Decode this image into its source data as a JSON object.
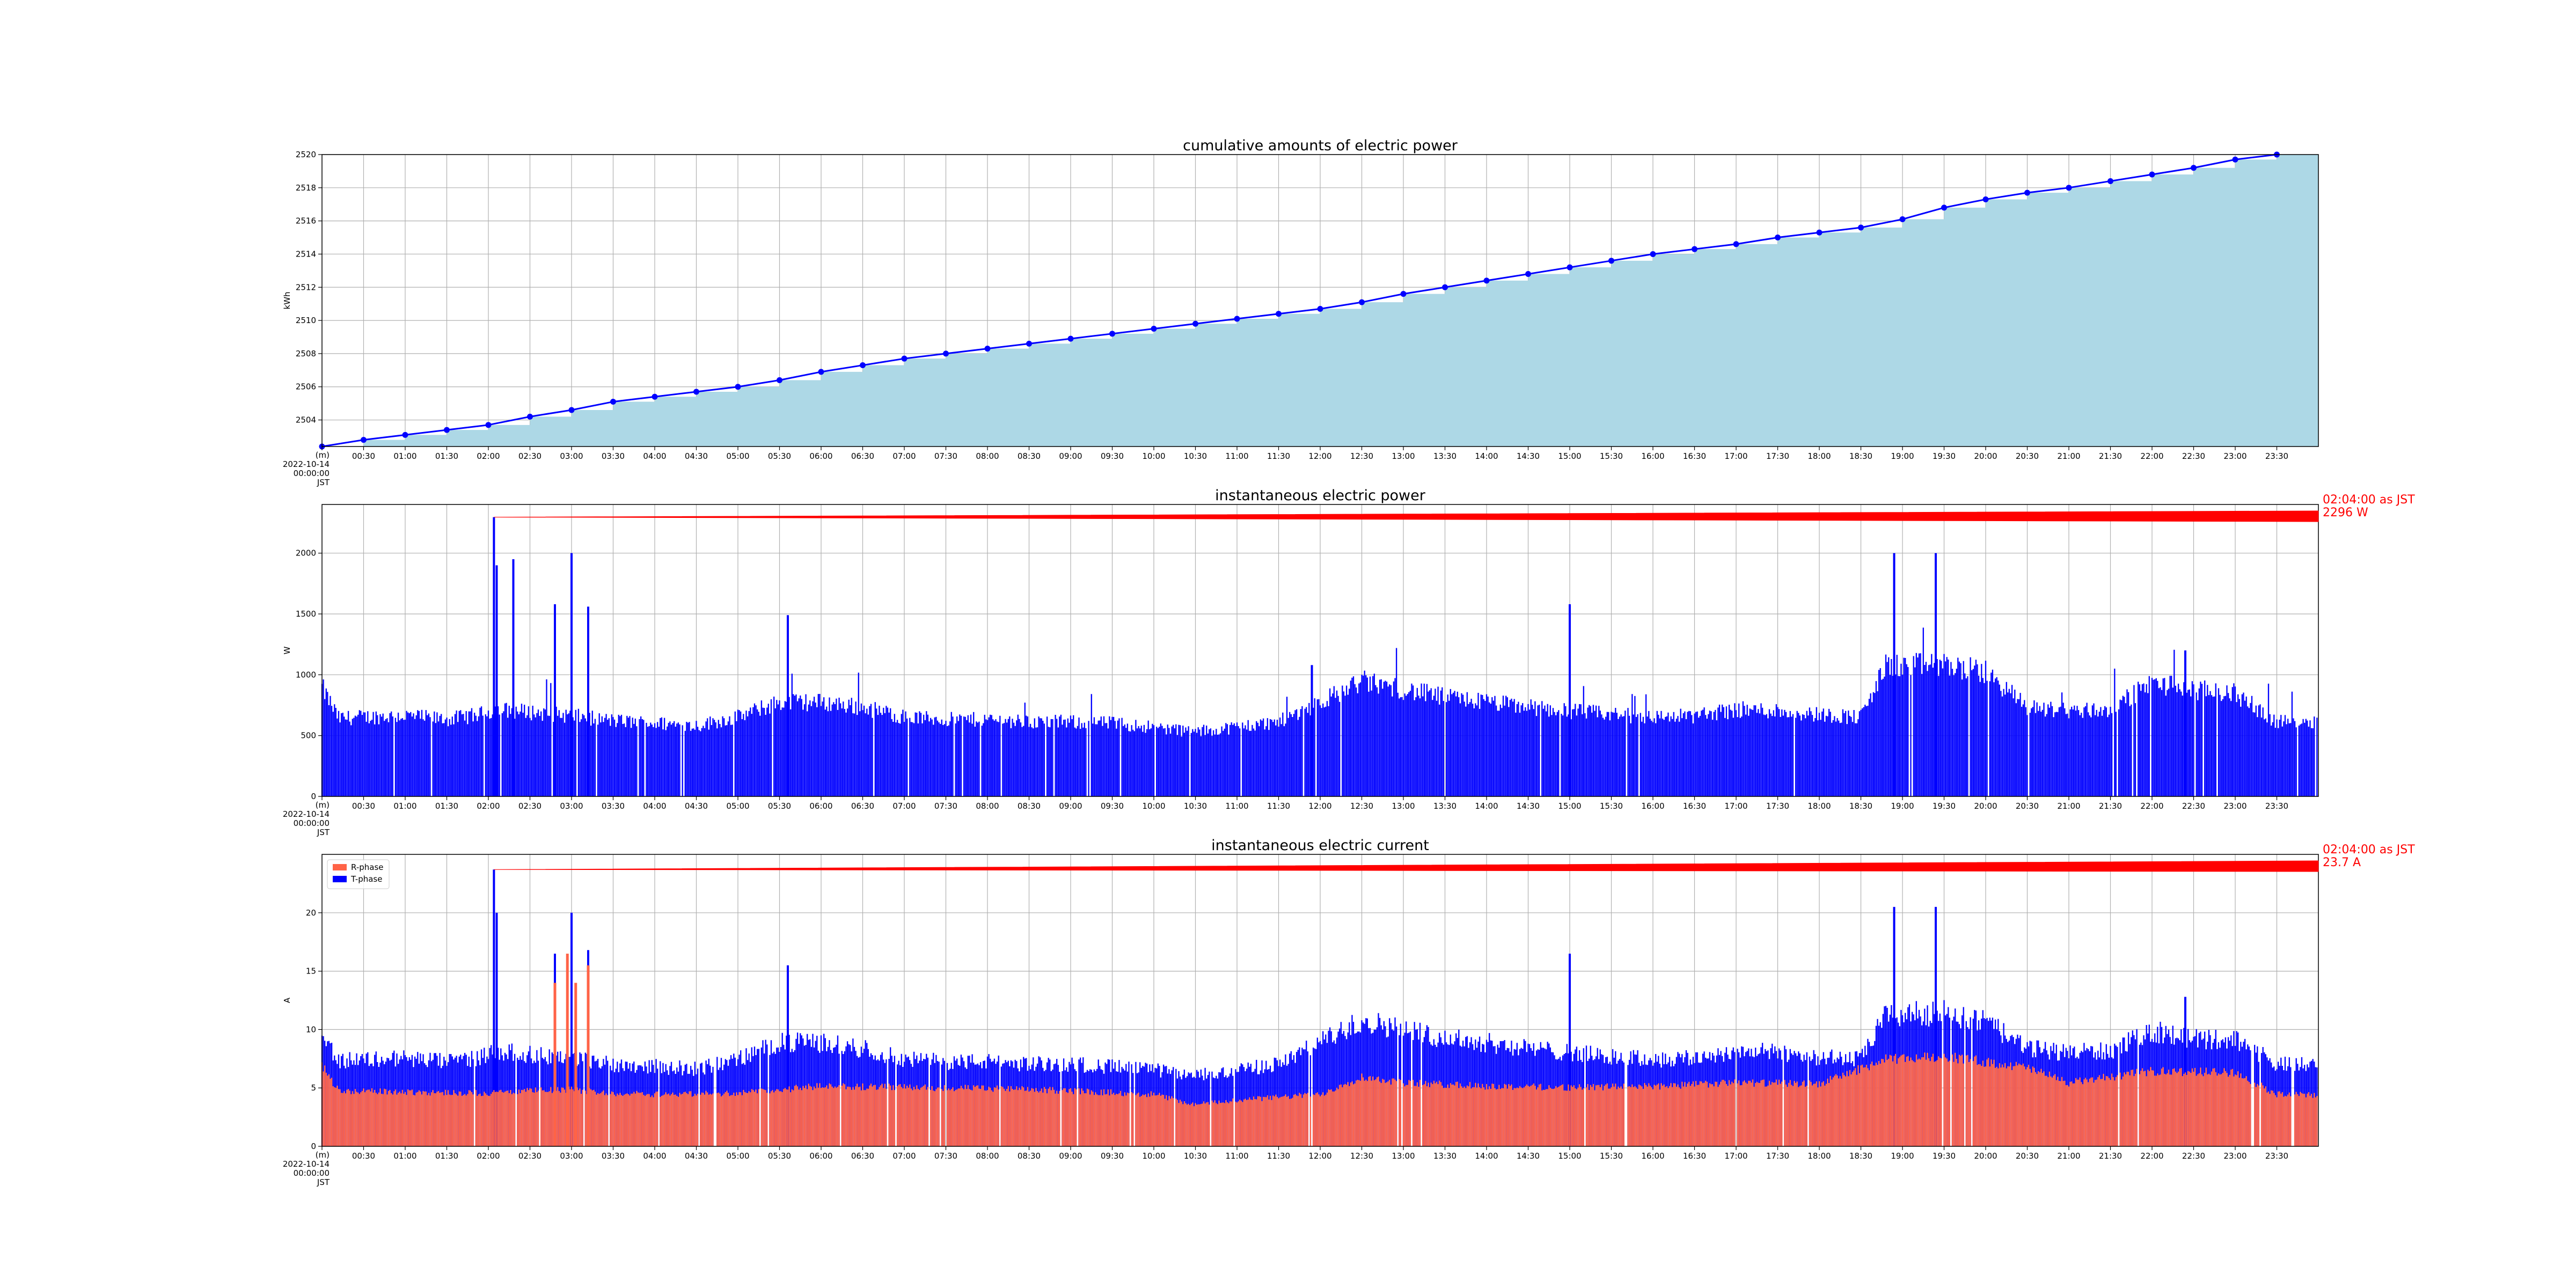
{
  "chart_data": [
    {
      "type": "area",
      "title": "cumulative amounts of electric power",
      "ylabel": "kWh",
      "ylim": [
        2502.4,
        2520
      ],
      "yticks": [
        2504,
        2506,
        2508,
        2510,
        2512,
        2514,
        2516,
        2518,
        2520
      ],
      "xlim": [
        0,
        24
      ],
      "first_tick_label": [
        "(m)",
        "2022-10-14",
        "00:00:00",
        "JST"
      ],
      "xtick_labels": [
        "00:30",
        "01:00",
        "01:30",
        "02:00",
        "02:30",
        "03:00",
        "03:30",
        "04:00",
        "04:30",
        "05:00",
        "05:30",
        "06:00",
        "06:30",
        "07:00",
        "07:30",
        "08:00",
        "08:30",
        "09:00",
        "09:30",
        "10:00",
        "10:30",
        "11:00",
        "11:30",
        "12:00",
        "12:30",
        "13:00",
        "13:30",
        "14:00",
        "14:30",
        "15:00",
        "15:30",
        "16:00",
        "16:30",
        "17:00",
        "17:30",
        "18:00",
        "18:30",
        "19:00",
        "19:30",
        "20:00",
        "20:30",
        "21:00",
        "21:30",
        "22:00",
        "22:30",
        "23:00",
        "23:30"
      ],
      "grid": true,
      "fill_color": "#add8e6",
      "line_color": "#0000ff",
      "x_hours": [
        0,
        0.5,
        1,
        1.5,
        2,
        2.5,
        3,
        3.5,
        4,
        4.5,
        5,
        5.5,
        6,
        6.5,
        7,
        7.5,
        8,
        8.5,
        9,
        9.5,
        10,
        10.5,
        11,
        11.5,
        12,
        12.5,
        13,
        13.5,
        14,
        14.5,
        15,
        15.5,
        16,
        16.5,
        17,
        17.5,
        18,
        18.5,
        19,
        19.5,
        20,
        20.5,
        21,
        21.5,
        22,
        22.5,
        23,
        23.5
      ],
      "values": [
        2502.4,
        2502.8,
        2503.1,
        2503.4,
        2503.7,
        2504.2,
        2504.6,
        2505.1,
        2505.4,
        2505.7,
        2506.0,
        2506.4,
        2506.9,
        2507.3,
        2507.7,
        2508.0,
        2508.3,
        2508.6,
        2508.9,
        2509.2,
        2509.5,
        2509.8,
        2510.1,
        2510.4,
        2510.7,
        2511.1,
        2511.6,
        2512.0,
        2512.4,
        2512.8,
        2513.2,
        2513.6,
        2514.0,
        2514.3,
        2514.6,
        2515.0,
        2515.3,
        2515.6,
        2516.1,
        2516.8,
        2517.3,
        2517.7,
        2518.0,
        2518.4,
        2518.8,
        2519.2,
        2519.7,
        2520.0
      ]
    },
    {
      "type": "bar",
      "title": "instantaneous electric power",
      "ylabel": "W",
      "ylim": [
        0,
        2400
      ],
      "yticks": [
        0,
        500,
        1000,
        1500,
        2000
      ],
      "xlim": [
        0,
        24
      ],
      "first_tick_label": [
        "(m)",
        "2022-10-14",
        "00:00:00",
        "JST"
      ],
      "xtick_labels": [
        "00:30",
        "01:00",
        "01:30",
        "02:00",
        "02:30",
        "03:00",
        "03:30",
        "04:00",
        "04:30",
        "05:00",
        "05:30",
        "06:00",
        "06:30",
        "07:00",
        "07:30",
        "08:00",
        "08:30",
        "09:00",
        "09:30",
        "10:00",
        "10:30",
        "11:00",
        "11:30",
        "12:00",
        "12:30",
        "13:00",
        "13:30",
        "14:00",
        "14:30",
        "15:00",
        "15:30",
        "16:00",
        "16:30",
        "17:00",
        "17:30",
        "18:00",
        "18:30",
        "19:00",
        "19:30",
        "20:00",
        "20:30",
        "21:00",
        "21:30",
        "22:00",
        "22:30",
        "23:00",
        "23:30"
      ],
      "grid": true,
      "bar_color": "#0000ff",
      "baseline_profile": {
        "hours": [
          0,
          0.2,
          0.5,
          1,
          1.5,
          1.9,
          2.1,
          2.5,
          3,
          3.5,
          4,
          4.5,
          5,
          5.5,
          6,
          6.5,
          7,
          7.5,
          8,
          8.5,
          9,
          9.5,
          10,
          10.5,
          11,
          11.5,
          12,
          12.5,
          13,
          13.5,
          14,
          14.5,
          15,
          15.5,
          16,
          16.5,
          17,
          17.5,
          18,
          18.5,
          18.8,
          19.5,
          20,
          20.5,
          21,
          21.5,
          22,
          22.5,
          23,
          23.5,
          24
        ],
        "watts": [
          880,
          630,
          640,
          650,
          620,
          660,
          700,
          680,
          650,
          610,
          590,
          570,
          640,
          760,
          760,
          720,
          640,
          620,
          620,
          600,
          600,
          590,
          560,
          520,
          560,
          600,
          760,
          930,
          860,
          800,
          760,
          720,
          690,
          660,
          640,
          650,
          700,
          690,
          660,
          640,
          1050,
          1060,
          1000,
          720,
          690,
          700,
          920,
          860,
          830,
          600,
          610
        ]
      },
      "peaks": [
        {
          "hour": 2.067,
          "value": 2296
        },
        {
          "hour": 2.1,
          "value": 1900
        },
        {
          "hour": 2.3,
          "value": 1950
        },
        {
          "hour": 2.8,
          "value": 1580
        },
        {
          "hour": 3.0,
          "value": 2000
        },
        {
          "hour": 3.2,
          "value": 1560
        },
        {
          "hour": 5.6,
          "value": 1490
        },
        {
          "hour": 11.9,
          "value": 1080
        },
        {
          "hour": 15.0,
          "value": 1580
        },
        {
          "hour": 18.9,
          "value": 2000
        },
        {
          "hour": 19.4,
          "value": 2000
        },
        {
          "hour": 22.4,
          "value": 1200
        }
      ],
      "annotation": {
        "lines": [
          "02:04:00 as JST",
          "2296 W"
        ],
        "hour": 2.067,
        "value": 2296
      }
    },
    {
      "type": "area",
      "title": "instantaneous electric current",
      "ylabel": "A",
      "ylim": [
        0,
        25
      ],
      "yticks": [
        0,
        5,
        10,
        15,
        20
      ],
      "xlim": [
        0,
        24
      ],
      "first_tick_label": [
        "(m)",
        "2022-10-14",
        "00:00:00",
        "JST"
      ],
      "xtick_labels": [
        "00:30",
        "01:00",
        "01:30",
        "02:00",
        "02:30",
        "03:00",
        "03:30",
        "04:00",
        "04:30",
        "05:00",
        "05:30",
        "06:00",
        "06:30",
        "07:00",
        "07:30",
        "08:00",
        "08:30",
        "09:00",
        "09:30",
        "10:00",
        "10:30",
        "11:00",
        "11:30",
        "12:00",
        "12:30",
        "13:00",
        "13:30",
        "14:00",
        "14:30",
        "15:00",
        "15:30",
        "16:00",
        "16:30",
        "17:00",
        "17:30",
        "18:00",
        "18:30",
        "19:00",
        "19:30",
        "20:00",
        "20:30",
        "21:00",
        "21:30",
        "22:00",
        "22:30",
        "23:00",
        "23:30"
      ],
      "grid": true,
      "legend_position": "upper-left",
      "series": [
        {
          "name": "R-phase",
          "color": "#ff6347",
          "hours": [
            0,
            0.2,
            1,
            2,
            2.5,
            3,
            3.5,
            4,
            5,
            6,
            7,
            8,
            9,
            10,
            10.5,
            11,
            12,
            12.5,
            13,
            14,
            15,
            16,
            17,
            18,
            18.8,
            19.5,
            20.5,
            21,
            22,
            23,
            23.5,
            24
          ],
          "amps": [
            7.0,
            4.8,
            4.7,
            4.6,
            4.8,
            4.9,
            4.6,
            4.5,
            4.6,
            5.2,
            5.1,
            5.0,
            4.8,
            4.5,
            3.6,
            4.0,
            4.5,
            6.0,
            5.5,
            5.2,
            5.1,
            5.2,
            5.5,
            5.4,
            7.5,
            7.8,
            6.8,
            5.5,
            6.5,
            6.4,
            4.5,
            4.4
          ]
        },
        {
          "name": "T-phase",
          "color": "#0000ff",
          "hours": [
            0,
            0.2,
            0.5,
            1,
            1.5,
            1.9,
            2.1,
            2.5,
            3,
            3.5,
            4,
            4.5,
            5,
            5.5,
            6,
            6.5,
            7,
            7.5,
            8,
            8.5,
            9,
            9.5,
            10,
            10.5,
            11,
            11.5,
            12,
            12.5,
            13,
            13.5,
            14,
            14.5,
            15,
            15.5,
            16,
            16.5,
            17,
            17.5,
            18,
            18.5,
            18.8,
            19.5,
            20,
            20.5,
            21,
            21.5,
            22,
            22.5,
            23,
            23.5,
            24
          ],
          "amps": [
            9.4,
            7.2,
            7.3,
            7.4,
            7.1,
            7.5,
            8.0,
            7.7,
            7.4,
            6.9,
            6.7,
            6.5,
            7.3,
            8.7,
            8.7,
            8.2,
            7.3,
            7.1,
            7.1,
            6.9,
            6.9,
            6.7,
            6.4,
            5.9,
            6.4,
            6.9,
            8.7,
            10.6,
            9.8,
            9.1,
            8.7,
            8.2,
            7.9,
            7.5,
            7.3,
            7.4,
            8.0,
            7.9,
            7.5,
            7.3,
            11.0,
            11.2,
            10.4,
            8.2,
            7.9,
            8.0,
            9.7,
            9.0,
            9.0,
            6.9,
            6.8
          ]
        }
      ],
      "peaks": [
        {
          "hour": 2.067,
          "value": 23.7
        },
        {
          "hour": 2.1,
          "value": 20.0
        },
        {
          "hour": 2.8,
          "value": 16.5
        },
        {
          "hour": 3.0,
          "value": 20.0
        },
        {
          "hour": 3.2,
          "value": 16.8
        },
        {
          "hour": 5.6,
          "value": 15.5
        },
        {
          "hour": 15.0,
          "value": 16.5
        },
        {
          "hour": 18.9,
          "value": 20.5
        },
        {
          "hour": 19.4,
          "value": 20.5
        },
        {
          "hour": 22.4,
          "value": 12.8
        }
      ],
      "annotation": {
        "lines": [
          "02:04:00 as JST",
          "23.7 A"
        ],
        "hour": 2.067,
        "value": 23.7
      }
    }
  ]
}
